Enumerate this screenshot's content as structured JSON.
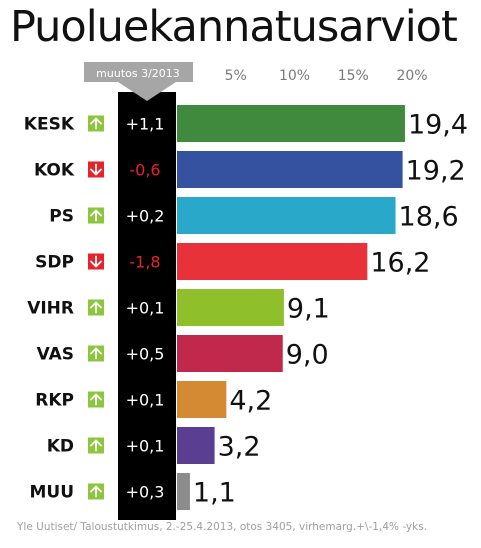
{
  "title": "Puoluekannatusarviot",
  "source": "Yle Uutiset/ Taloustutkimus, 2.-25.4.2013, otos 3405, virhemarg.+\\-1,4% -yks.",
  "colors": {
    "change_column": "#000000",
    "change_header": "#a6a6a6",
    "arrow_up": "#8cc63f",
    "arrow_down": "#e8222a",
    "change_positive_text": "#ffffff",
    "change_negative_text": "#e8222a"
  },
  "chart_data": {
    "type": "bar",
    "orientation": "horizontal",
    "change_header": "muutos 3/2013",
    "x_ticks": [
      "5%",
      "10%",
      "15%",
      "20%"
    ],
    "x_tick_values": [
      5,
      10,
      15,
      20
    ],
    "xlim": [
      0,
      20
    ],
    "categories": [
      "KESK",
      "KOK",
      "PS",
      "SDP",
      "VIHR",
      "VAS",
      "RKP",
      "KD",
      "MUU"
    ],
    "values": [
      19.4,
      19.2,
      18.6,
      16.2,
      9.1,
      9.0,
      4.2,
      3.2,
      1.1
    ],
    "value_labels": [
      "19,4",
      "19,2",
      "18,6",
      "16,2",
      "9,1",
      "9,0",
      "4,2",
      "3,2",
      "1,1"
    ],
    "changes": [
      "+1,1",
      "-0,6",
      "+0,2",
      "-1,8",
      "+0,1",
      "+0,5",
      "+0,1",
      "+0,1",
      "+0,3"
    ],
    "change_directions": [
      "up",
      "down",
      "up",
      "down",
      "up",
      "up",
      "up",
      "up",
      "up"
    ],
    "bar_colors": [
      "#3f8a3c",
      "#3552a1",
      "#2aa8c9",
      "#e8323a",
      "#8fbf2a",
      "#c0284c",
      "#d38a33",
      "#5a3e91",
      "#8c8c8c"
    ]
  }
}
